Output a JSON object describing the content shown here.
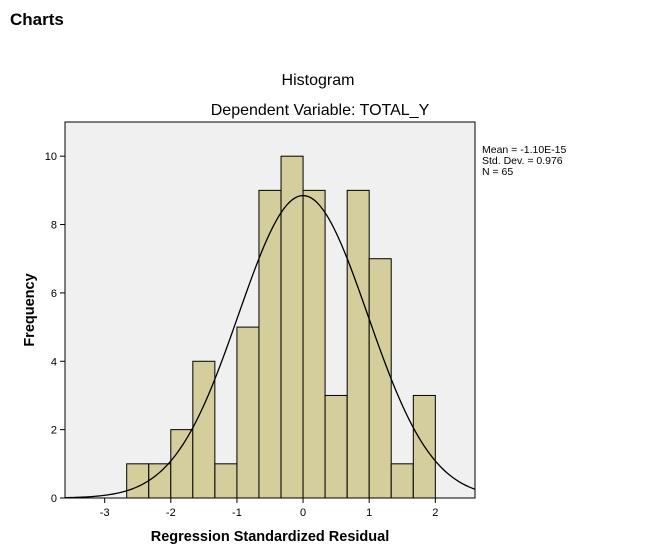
{
  "page": {
    "section_heading": "Charts"
  },
  "chart_data": {
    "type": "bar",
    "subtype": "histogram",
    "title": "Histogram",
    "subtitle": "Dependent Variable: TOTAL_Y",
    "xlabel": "Regression Standardized Residual",
    "ylabel": "Frequency",
    "xlim": [
      -3.6,
      2.6
    ],
    "ylim": [
      0,
      11
    ],
    "xticks": [
      -3,
      -2,
      -1,
      0,
      1,
      2
    ],
    "xtick_labels": [
      "-3",
      "-2",
      "-1",
      "0",
      "1",
      "2"
    ],
    "yticks": [
      0,
      2,
      4,
      6,
      8,
      10
    ],
    "ytick_labels": [
      "0",
      "2",
      "4",
      "6",
      "8",
      "10"
    ],
    "bin_width": 0.333,
    "bins": [
      {
        "start": -2.667,
        "count": 1
      },
      {
        "start": -2.333,
        "count": 1
      },
      {
        "start": -2.0,
        "count": 2
      },
      {
        "start": -1.667,
        "count": 4
      },
      {
        "start": -1.333,
        "count": 1
      },
      {
        "start": -1.0,
        "count": 5
      },
      {
        "start": -0.667,
        "count": 9
      },
      {
        "start": -0.333,
        "count": 10
      },
      {
        "start": 0.0,
        "count": 9
      },
      {
        "start": 0.333,
        "count": 3
      },
      {
        "start": 0.667,
        "count": 9
      },
      {
        "start": 1.0,
        "count": 7
      },
      {
        "start": 1.333,
        "count": 1
      },
      {
        "start": 1.667,
        "count": 3
      }
    ],
    "stats": {
      "mean_label": "Mean = -1.10E-15",
      "std_label": "Std. Dev. = 0.976",
      "n_label": "N = 65"
    },
    "normal_curve": {
      "mean": 0,
      "std": 0.976,
      "n": 65
    },
    "colors": {
      "bar_fill": "#d3ce9c",
      "bar_stroke": "#000000",
      "plot_background": "#f0f0f0",
      "curve": "#000000"
    },
    "grid": false
  }
}
